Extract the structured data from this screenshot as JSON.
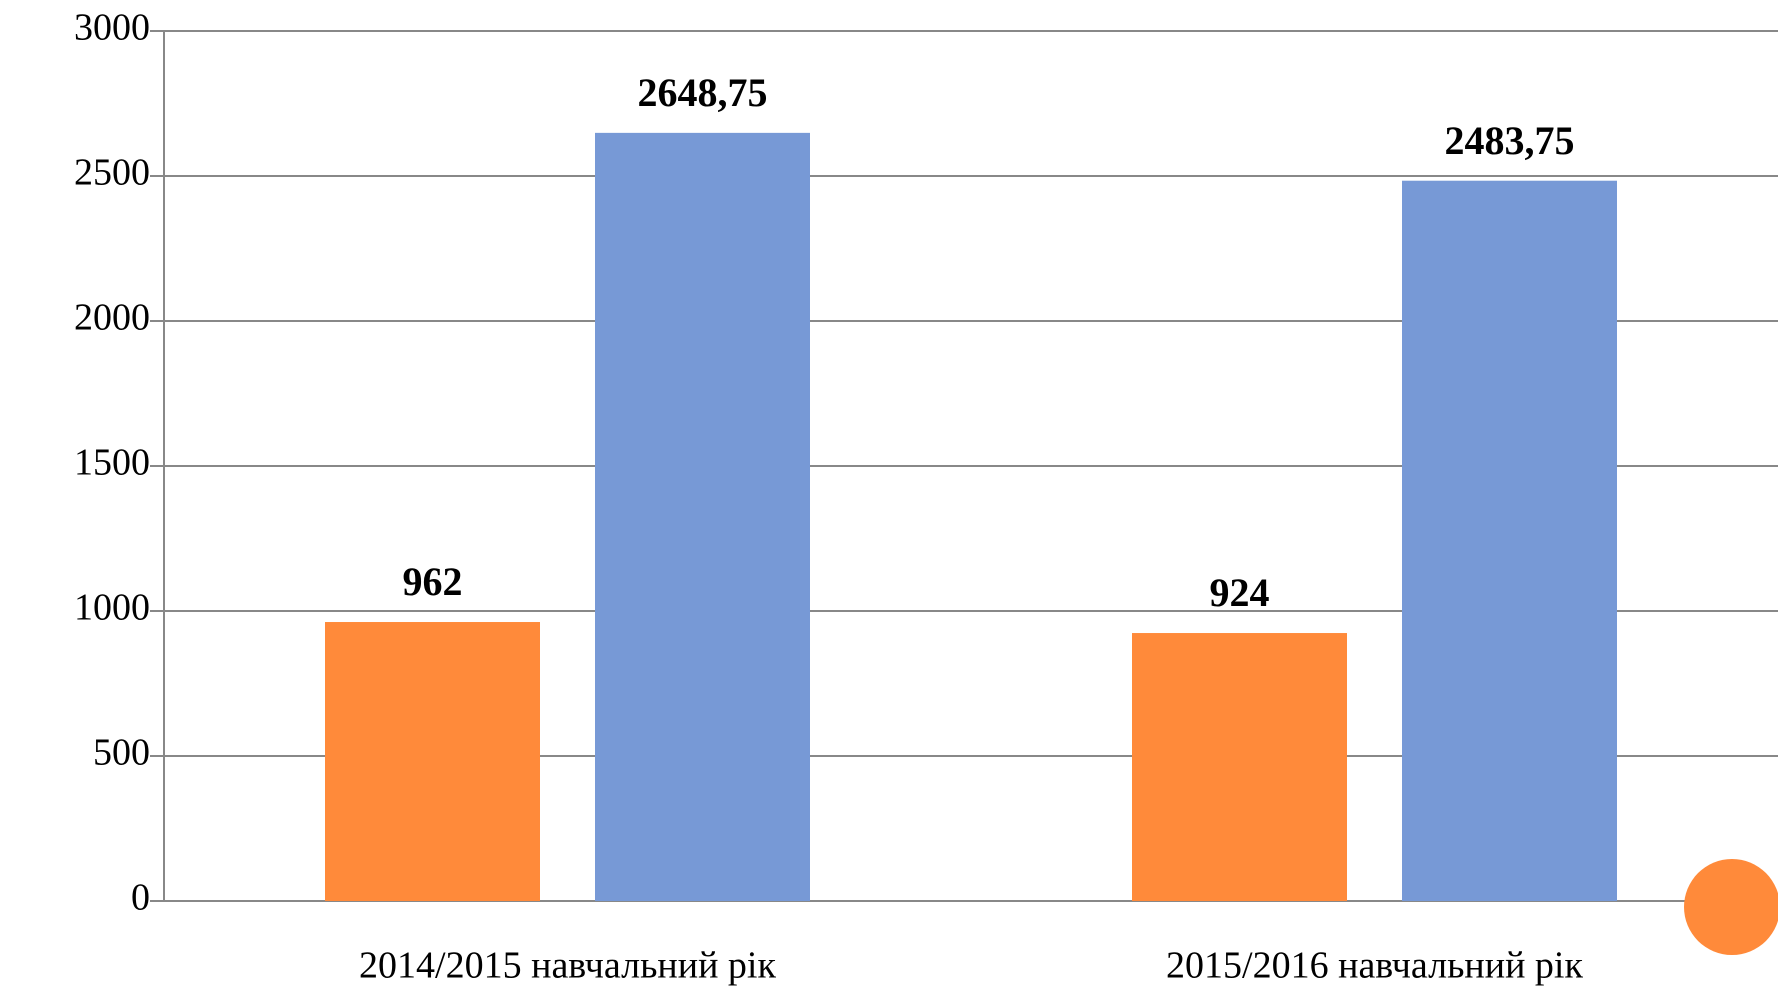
{
  "chart_data": {
    "type": "bar",
    "categories": [
      "2014/2015 навчальний рік",
      "2015/2016 навчальний рік"
    ],
    "series": [
      {
        "color": "#ff8a3a",
        "values": [
          962,
          924
        ]
      },
      {
        "color": "#7799d6",
        "values": [
          2648.75,
          2483.75
        ],
        "value_labels": [
          "2648,75",
          "2483,75"
        ]
      }
    ],
    "ylim": [
      0,
      3000
    ],
    "yticks": [
      0,
      500,
      1000,
      1500,
      2000,
      2500,
      3000
    ],
    "grid": true
  }
}
